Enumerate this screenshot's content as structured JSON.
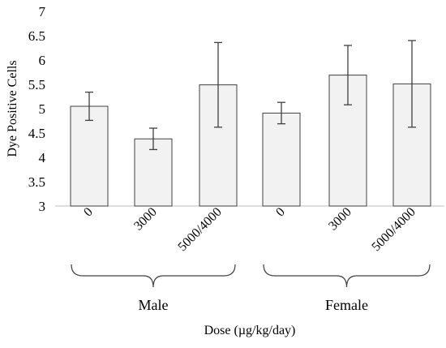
{
  "chart_data": {
    "type": "bar",
    "ylabel": "Dye Positive Cells",
    "xlabel": "Dose (µg/kg/day)",
    "ylim": [
      3,
      7
    ],
    "yticks": [
      "3",
      "3.5",
      "4",
      "4.5",
      "5",
      "5.5",
      "6",
      "6.5",
      "7"
    ],
    "grid": false,
    "groups": [
      {
        "name": "Male",
        "categories": [
          "0",
          "3000",
          "5000/4000"
        ],
        "values": [
          5.05,
          4.38,
          5.49
        ],
        "errors": [
          0.29,
          0.22,
          0.87
        ]
      },
      {
        "name": "Female",
        "categories": [
          "0",
          "3000",
          "5000/4000"
        ],
        "values": [
          4.91,
          5.69,
          5.51
        ],
        "errors": [
          0.22,
          0.61,
          0.89
        ]
      }
    ]
  }
}
